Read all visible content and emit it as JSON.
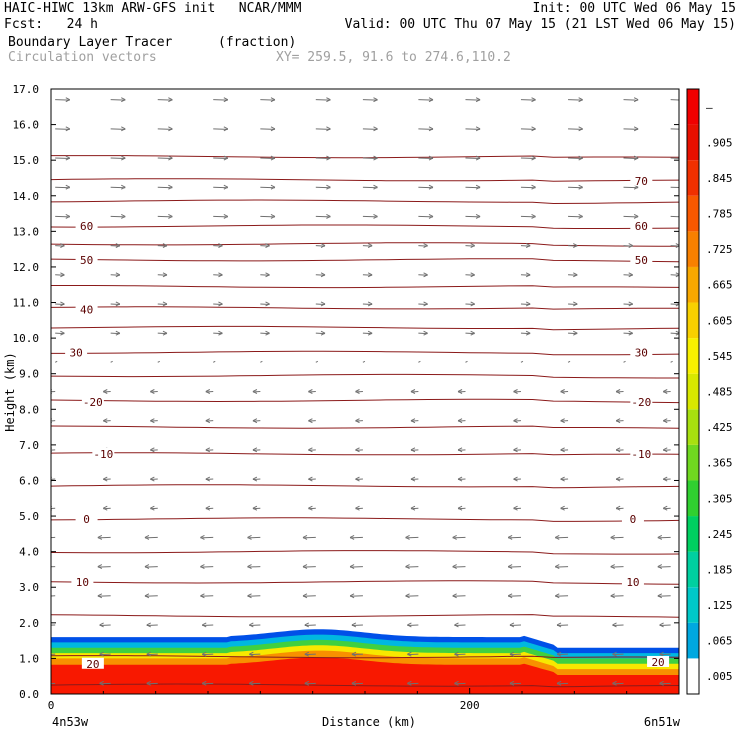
{
  "header": {
    "line1_left": "HAIC-HIWC 13km ARW-GFS init   NCAR/MMM",
    "line1_right": "Init: 00 UTC Wed 06 May 15",
    "line2_left": "Fcst:   24 h",
    "line2_right": "Valid: 00 UTC Thu 07 May 15 (21 LST Wed 06 May 15)",
    "line3_left": "Boundary Layer Tracer",
    "line3_units": "(fraction)",
    "line4_left": "Circulation vectors",
    "line4_xy": "XY= 259.5, 91.6 to 274.6,110.2"
  },
  "chart_data": {
    "type": "heatmap",
    "xlabel": "Distance (km)",
    "ylabel": "Height (km)",
    "xlim": [
      0,
      300
    ],
    "ylim": [
      0,
      17
    ],
    "y_ticks": [
      "0.0",
      "1.0",
      "2.0",
      "3.0",
      "4.0",
      "5.0",
      "6.0",
      "7.0",
      "8.0",
      "9.0",
      "10.0",
      "11.0",
      "12.0",
      "13.0",
      "14.0",
      "15.0",
      "16.0",
      "17.0"
    ],
    "x_ticks": [
      {
        "value": 0,
        "label": "0"
      },
      {
        "value": 200,
        "label": "200"
      }
    ],
    "x_end_labels": {
      "left": "4n53w",
      "right": "6n51w"
    },
    "colorbar": {
      "labels": [
        ".005",
        ".065",
        ".125",
        ".185",
        ".245",
        ".305",
        ".365",
        ".425",
        ".485",
        ".545",
        ".605",
        ".665",
        ".725",
        ".785",
        ".845",
        ".905",
        "–"
      ],
      "colors": [
        "#ffffff",
        "#00a8e0",
        "#00c8c8",
        "#00d0a0",
        "#00d060",
        "#30d030",
        "#70d820",
        "#a8e010",
        "#d8e800",
        "#f8f000",
        "#f8d000",
        "#f8a800",
        "#f88000",
        "#f85800",
        "#f03000",
        "#e81000",
        "#f00000"
      ]
    },
    "contour_labels": [
      {
        "text": "70",
        "x": 282,
        "y": 14.42
      },
      {
        "text": "60",
        "x": 17,
        "y": 13.15
      },
      {
        "text": "60",
        "x": 282,
        "y": 13.15
      },
      {
        "text": "50",
        "x": 17,
        "y": 12.2
      },
      {
        "text": "50",
        "x": 282,
        "y": 12.2
      },
      {
        "text": "40",
        "x": 17,
        "y": 10.8
      },
      {
        "text": "30",
        "x": 12,
        "y": 9.6
      },
      {
        "text": "30",
        "x": 282,
        "y": 9.6
      },
      {
        "text": "-20",
        "x": 20,
        "y": 8.2
      },
      {
        "text": "-20",
        "x": 282,
        "y": 8.2
      },
      {
        "text": "-10",
        "x": 25,
        "y": 6.75
      },
      {
        "text": "-10",
        "x": 282,
        "y": 6.75
      },
      {
        "text": "0",
        "x": 17,
        "y": 4.92
      },
      {
        "text": "0",
        "x": 278,
        "y": 4.92
      },
      {
        "text": "10",
        "x": 15,
        "y": 3.15
      },
      {
        "text": "10",
        "x": 278,
        "y": 3.15
      },
      {
        "text": "20",
        "x": 20,
        "y": 0.85
      },
      {
        "text": "20",
        "x": 290,
        "y": 0.9
      }
    ]
  }
}
